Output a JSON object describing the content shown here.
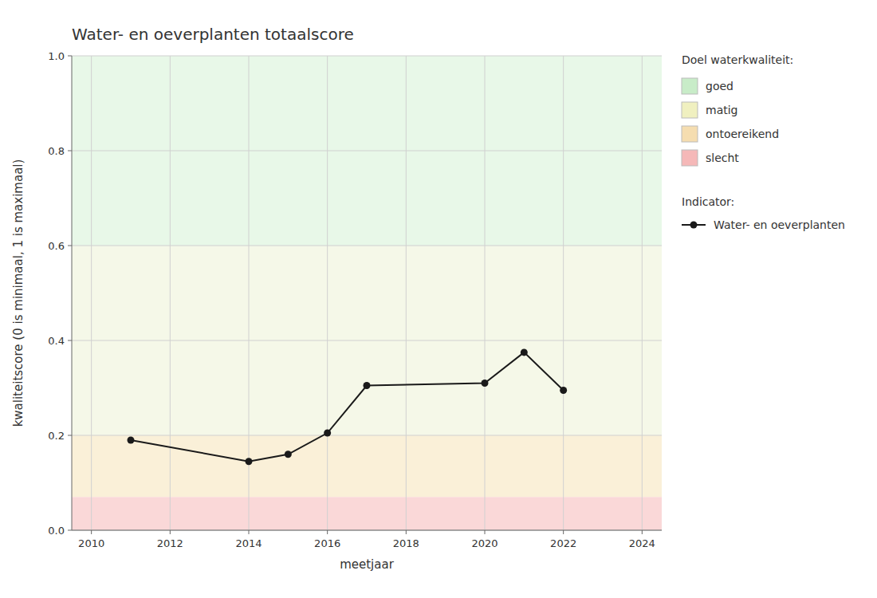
{
  "chart_data": {
    "type": "line",
    "title": "Water- en oeverplanten totaalscore",
    "x_label": "meetjaar",
    "y_label": "kwaliteitscore (0 is minimaal, 1 is maximaal)",
    "xlim": [
      2009.5,
      2024.5
    ],
    "ylim": [
      0.0,
      1.0
    ],
    "xticks": [
      2010,
      2012,
      2014,
      2016,
      2018,
      2020,
      2022,
      2024
    ],
    "yticks": [
      {
        "value": 0.0,
        "label": "0.0"
      },
      0.2,
      0.4,
      0.6,
      0.8,
      {
        "value": 1.0,
        "label": "1.0"
      }
    ],
    "grid": true,
    "legend": "right",
    "x": [
      2011,
      2014,
      2015,
      2016,
      2017,
      2020,
      2021,
      2022
    ],
    "series": [
      {
        "name": "Water- en oeverplanten",
        "color": "#1a1a1a",
        "marker": "circle",
        "line_style": "solid",
        "values": [
          0.19,
          0.145,
          0.16,
          0.205,
          0.305,
          0.31,
          0.375,
          0.295
        ]
      }
    ],
    "series_legend_title": "Indicator:",
    "bands_legend_title": "Doel waterkwaliteit:",
    "bands": [
      {
        "name": "goed",
        "ymin": 0.6,
        "ymax": 1.0,
        "color": "#e8f8e8",
        "legend_color": "#c8ecc8"
      },
      {
        "name": "matig",
        "ymin": 0.2,
        "ymax": 0.6,
        "color": "#f5f8e8",
        "legend_color": "#f0f0c0"
      },
      {
        "name": "ontoereikend",
        "ymin": 0.07,
        "ymax": 0.2,
        "color": "#faf0d8",
        "legend_color": "#f5ddb0"
      },
      {
        "name": "slecht",
        "ymin": 0.0,
        "ymax": 0.07,
        "color": "#fad8d8",
        "legend_color": "#f5b8b8"
      }
    ]
  }
}
